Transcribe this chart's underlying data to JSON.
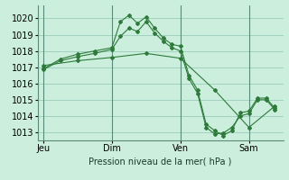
{
  "title": "",
  "xlabel": "Pression niveau de la mer( hPa )",
  "bg_color": "#cceedd",
  "grid_color": "#99ccbb",
  "line_color": "#2d7a3a",
  "ylim": [
    1012.5,
    1020.8
  ],
  "yticks": [
    1013,
    1014,
    1015,
    1016,
    1017,
    1018,
    1019,
    1020
  ],
  "day_labels": [
    "Jeu",
    "Dim",
    "Ven",
    "Sam"
  ],
  "day_positions": [
    0,
    48,
    96,
    144
  ],
  "xlim": [
    -4,
    168
  ],
  "series1": {
    "x": [
      0,
      12,
      24,
      36,
      48,
      54,
      60,
      66,
      72,
      78,
      84,
      90,
      96,
      102,
      108,
      114,
      120,
      126,
      132,
      138,
      144,
      150,
      156,
      162
    ],
    "y": [
      1016.9,
      1017.5,
      1017.8,
      1018.0,
      1018.2,
      1019.8,
      1020.2,
      1019.7,
      1020.1,
      1019.4,
      1018.8,
      1018.4,
      1018.3,
      1016.5,
      1015.6,
      1013.5,
      1013.1,
      1012.8,
      1013.1,
      1014.2,
      1014.3,
      1015.1,
      1015.1,
      1014.5
    ]
  },
  "series2": {
    "x": [
      0,
      12,
      24,
      36,
      48,
      54,
      60,
      66,
      72,
      78,
      84,
      90,
      96,
      102,
      108,
      114,
      120,
      126,
      132,
      138,
      144,
      150,
      156,
      162
    ],
    "y": [
      1016.85,
      1017.4,
      1017.65,
      1017.85,
      1018.1,
      1018.9,
      1019.4,
      1019.2,
      1019.8,
      1019.1,
      1018.6,
      1018.2,
      1018.0,
      1016.3,
      1015.4,
      1013.3,
      1012.9,
      1012.95,
      1013.3,
      1014.0,
      1014.15,
      1015.0,
      1015.0,
      1014.4
    ]
  },
  "series3": {
    "x": [
      0,
      24,
      48,
      72,
      96,
      120,
      144,
      162
    ],
    "y": [
      1017.1,
      1017.4,
      1017.6,
      1017.85,
      1017.55,
      1015.6,
      1013.3,
      1014.6
    ]
  }
}
